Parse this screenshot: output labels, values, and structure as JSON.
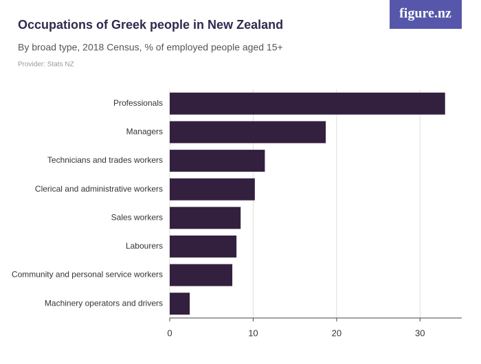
{
  "logo": "figure.nz",
  "chart_data": {
    "type": "hbar",
    "title": "Occupations of Greek people in New Zealand",
    "subtitle": "By broad type, 2018 Census, % of employed people aged 15+",
    "source": "Provider: Stats NZ",
    "categories": [
      "Professionals",
      "Managers",
      "Technicians and trades workers",
      "Clerical and administrative workers",
      "Sales workers",
      "Labourers",
      "Community and personal service workers",
      "Machinery operators and drivers"
    ],
    "values": [
      33.0,
      18.7,
      11.4,
      10.2,
      8.5,
      8.0,
      7.5,
      2.4
    ],
    "color": "#33203f",
    "xlim": [
      0,
      35
    ],
    "xticks": [
      0,
      10,
      20,
      30
    ],
    "grid": true
  }
}
